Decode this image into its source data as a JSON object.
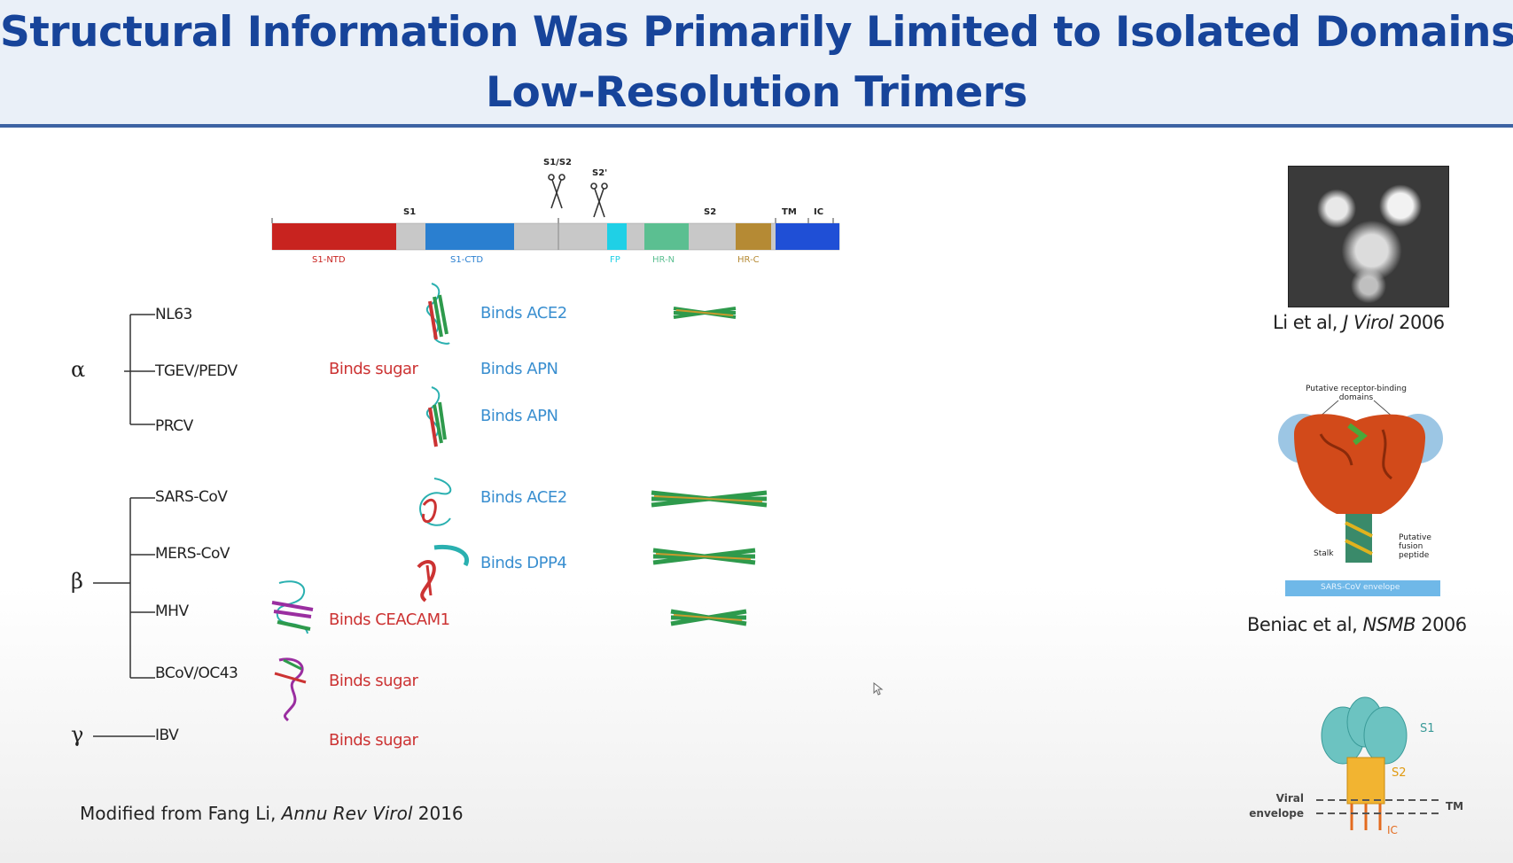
{
  "slide": {
    "title_line1": "Structural Information Was Primarily Limited to Isolated Domains or",
    "title_line2": "Low-Resolution Trimers"
  },
  "domain_bar": {
    "top_labels": {
      "s1": "S1",
      "s2": "S2",
      "tm": "TM",
      "ic": "IC",
      "s1s2_site": "S1/S2",
      "s2prime_site": "S2'"
    },
    "segments": [
      {
        "label": "S1-NTD",
        "color": "#c8231f"
      },
      {
        "label": "S1-CTD",
        "color": "#2a7fd0"
      },
      {
        "label": "FP",
        "color": "#1fd0e6"
      },
      {
        "label": "HR-N",
        "color": "#5bbf91"
      },
      {
        "label": "HR-C",
        "color": "#b58a34"
      }
    ],
    "gray": "#c8c8c8",
    "tmic_color": "#1f4fd6"
  },
  "tree": {
    "groups": [
      {
        "genus": "α",
        "viruses": [
          "NL63",
          "TGEV/PEDV",
          "PRCV"
        ]
      },
      {
        "genus": "β",
        "viruses": [
          "SARS-CoV",
          "MERS-CoV",
          "MHV",
          "BCoV/OC43"
        ]
      },
      {
        "genus": "γ",
        "viruses": [
          "IBV"
        ]
      }
    ]
  },
  "ntd_labels": [
    {
      "virus": "TGEV/PEDV",
      "text": "Binds sugar"
    },
    {
      "virus": "MHV",
      "text": "Binds CEACAM1"
    },
    {
      "virus": "BCoV/OC43",
      "text": "Binds sugar"
    },
    {
      "virus": "IBV",
      "text": "Binds sugar"
    }
  ],
  "ctd_labels": [
    {
      "virus": "NL63",
      "text": "Binds ACE2"
    },
    {
      "virus": "TGEV/PEDV",
      "text": "Binds APN"
    },
    {
      "virus": "PRCV",
      "text": "Binds APN"
    },
    {
      "virus": "SARS-CoV",
      "text": "Binds ACE2"
    },
    {
      "virus": "MERS-CoV",
      "text": "Binds DPP4"
    }
  ],
  "source": {
    "prefix": "Modified from Fang Li, ",
    "journal": "Annu Rev Virol",
    "year": " 2016"
  },
  "right_panel": {
    "em_caption": {
      "prefix": "Li et al, ",
      "journal": "J Virol",
      "year": " 2006"
    },
    "model_caption": {
      "prefix": "Beniac et al, ",
      "journal": "NSMB",
      "year": " 2006"
    },
    "model_labels": {
      "rbd": "Putative receptor-binding domains",
      "stalk": "Stalk",
      "fusion": "Putative fusion peptide",
      "membrane": "SARS-CoV envelope"
    },
    "schematic": {
      "s1": "S1",
      "s2": "S2",
      "viral_envelope": "Viral envelope",
      "tm": "TM",
      "ic": "IC"
    }
  },
  "colors": {
    "title": "#17449a",
    "title_band": "#eaf0f8",
    "title_rule": "#3d63a3",
    "binds_red": "#cc3333",
    "binds_blue": "#3a8fd0"
  }
}
